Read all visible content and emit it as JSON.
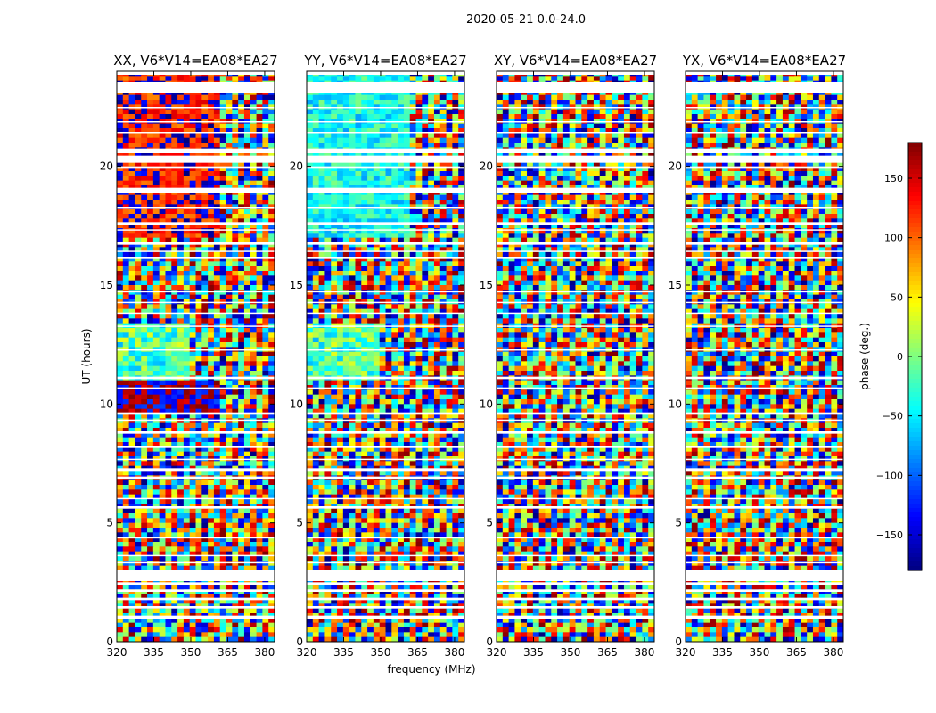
{
  "chart_data": {
    "type": "heatmap",
    "suptitle": "2020-05-21 0.0-24.0",
    "xlabel": "frequency (MHz)",
    "ylabel": "UT (hours)",
    "xlim": [
      320,
      384
    ],
    "ylim": [
      0,
      24
    ],
    "xticks": [
      320,
      335,
      350,
      365,
      380
    ],
    "yticks": [
      0,
      5,
      10,
      15,
      20
    ],
    "colormap": "jet",
    "colorbar": {
      "label": "phase (deg.)",
      "range": [
        -180,
        180
      ],
      "ticks": [
        150,
        100,
        50,
        0,
        -50,
        -100,
        -150
      ],
      "tick_labels": [
        "150",
        "100",
        "50",
        "0",
        "−50",
        "−100",
        "−150"
      ]
    },
    "panels": [
      {
        "title": "XX, V6*V14=EA08*EA27",
        "correlation": "XX"
      },
      {
        "title": "YY, V6*V14=EA08*EA27",
        "correlation": "YY"
      },
      {
        "title": "XY, V6*V14=EA08*EA27",
        "correlation": "XY"
      },
      {
        "title": "YX, V6*V14=EA08*EA27",
        "correlation": "YX"
      }
    ],
    "flagged_time_ranges_hours": [
      [
        0.95,
        1.1
      ],
      [
        1.4,
        1.5
      ],
      [
        1.75,
        1.85
      ],
      [
        2.1,
        2.2
      ],
      [
        2.4,
        2.5
      ],
      [
        2.55,
        3.0
      ],
      [
        3.3,
        3.35
      ],
      [
        3.6,
        3.65
      ],
      [
        4.35,
        4.4
      ],
      [
        5.6,
        5.7
      ],
      [
        6.0,
        6.05
      ],
      [
        6.85,
        6.95
      ],
      [
        7.15,
        7.3
      ],
      [
        7.65,
        7.7
      ],
      [
        8.15,
        8.25
      ],
      [
        8.75,
        8.85
      ],
      [
        9.3,
        9.35
      ],
      [
        9.55,
        9.65
      ],
      [
        10.65,
        10.7
      ],
      [
        11.05,
        11.15
      ],
      [
        12.25,
        12.3
      ],
      [
        13.25,
        13.3
      ],
      [
        13.8,
        13.85
      ],
      [
        14.25,
        14.3
      ],
      [
        14.7,
        14.75
      ],
      [
        16.1,
        16.2
      ],
      [
        16.4,
        16.45
      ],
      [
        16.7,
        16.8
      ],
      [
        17.3,
        17.35
      ],
      [
        17.55,
        17.65
      ],
      [
        18.25,
        18.3
      ],
      [
        18.9,
        19.1
      ],
      [
        19.9,
        20.0
      ],
      [
        20.15,
        20.45
      ],
      [
        20.55,
        20.75
      ],
      [
        21.4,
        21.45
      ],
      [
        21.85,
        21.9
      ],
      [
        22.45,
        22.5
      ],
      [
        23.1,
        23.55
      ],
      [
        23.85,
        24.0
      ]
    ]
  }
}
